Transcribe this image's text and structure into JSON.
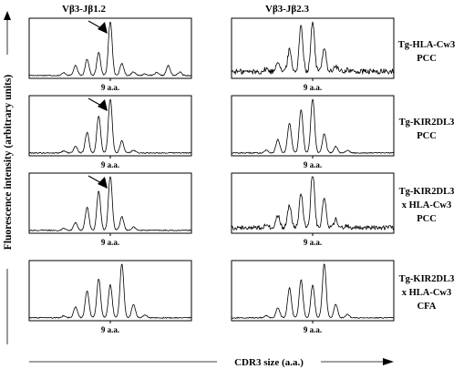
{
  "chart_data": {
    "type": "line",
    "columns": [
      "Vβ3-Jβ1.2",
      "Vβ3-Jβ2.3"
    ],
    "rows": [
      {
        "label_lines": [
          "Tg-HLA-Cw3",
          "PCC"
        ]
      },
      {
        "label_lines": [
          "Tg-KIR2DL3",
          "PCC"
        ]
      },
      {
        "label_lines": [
          "Tg-KIR2DL3",
          "x HLA-Cw3",
          "PCC"
        ]
      },
      {
        "label_lines": [
          "Tg-KIR2DL3",
          "x HLA-Cw3",
          "CFA"
        ]
      }
    ],
    "xlabel": "CDR3 size (a.a.)",
    "ylabel": "Fluorescence intensity (arbitrary units)",
    "tick_label": "9 a.a.",
    "reference_size": 9,
    "x_range": [
      2,
      16
    ],
    "y_range": [
      0,
      1
    ],
    "arrow_annotation": {
      "column": 0,
      "rows": [
        0,
        1,
        2
      ],
      "points_to_size": 9
    },
    "panels": [
      {
        "row": 0,
        "column": 0,
        "noise": 0.01,
        "baseline": 0.02,
        "peaks": [
          {
            "x": 5,
            "y": 0.05
          },
          {
            "x": 6,
            "y": 0.18
          },
          {
            "x": 7,
            "y": 0.3
          },
          {
            "x": 8,
            "y": 0.42
          },
          {
            "x": 9,
            "y": 1.0
          },
          {
            "x": 10,
            "y": 0.22
          },
          {
            "x": 11,
            "y": 0.07
          },
          {
            "x": 12,
            "y": 0.03
          },
          {
            "x": 13,
            "y": 0.05
          },
          {
            "x": 14,
            "y": 0.18
          },
          {
            "x": 15,
            "y": 0.06
          }
        ]
      },
      {
        "row": 0,
        "column": 1,
        "noise": 0.05,
        "baseline": 0.09,
        "peaks": [
          {
            "x": 5,
            "y": 0.05
          },
          {
            "x": 6,
            "y": 0.2
          },
          {
            "x": 7,
            "y": 0.4
          },
          {
            "x": 8,
            "y": 0.85
          },
          {
            "x": 9,
            "y": 0.92
          },
          {
            "x": 10,
            "y": 0.45
          },
          {
            "x": 11,
            "y": 0.1
          },
          {
            "x": 12,
            "y": 0.04
          }
        ]
      },
      {
        "row": 1,
        "column": 0,
        "noise": 0.01,
        "baseline": 0.02,
        "peaks": [
          {
            "x": 5,
            "y": 0.04
          },
          {
            "x": 6,
            "y": 0.12
          },
          {
            "x": 7,
            "y": 0.38
          },
          {
            "x": 8,
            "y": 0.68
          },
          {
            "x": 9,
            "y": 1.0
          },
          {
            "x": 10,
            "y": 0.22
          },
          {
            "x": 11,
            "y": 0.05
          }
        ]
      },
      {
        "row": 1,
        "column": 1,
        "noise": 0.01,
        "baseline": 0.02,
        "peaks": [
          {
            "x": 5,
            "y": 0.05
          },
          {
            "x": 6,
            "y": 0.25
          },
          {
            "x": 7,
            "y": 0.55
          },
          {
            "x": 8,
            "y": 0.8
          },
          {
            "x": 9,
            "y": 1.0
          },
          {
            "x": 10,
            "y": 0.35
          },
          {
            "x": 11,
            "y": 0.12
          },
          {
            "x": 12,
            "y": 0.05
          }
        ]
      },
      {
        "row": 2,
        "column": 0,
        "noise": 0.01,
        "baseline": 0.02,
        "peaks": [
          {
            "x": 5,
            "y": 0.04
          },
          {
            "x": 6,
            "y": 0.14
          },
          {
            "x": 7,
            "y": 0.42
          },
          {
            "x": 8,
            "y": 0.72
          },
          {
            "x": 9,
            "y": 1.0
          },
          {
            "x": 10,
            "y": 0.25
          },
          {
            "x": 11,
            "y": 0.06
          }
        ]
      },
      {
        "row": 2,
        "column": 1,
        "noise": 0.04,
        "baseline": 0.07,
        "peaks": [
          {
            "x": 5,
            "y": 0.05
          },
          {
            "x": 6,
            "y": 0.22
          },
          {
            "x": 7,
            "y": 0.4
          },
          {
            "x": 8,
            "y": 0.62
          },
          {
            "x": 9,
            "y": 1.0
          },
          {
            "x": 10,
            "y": 0.55
          },
          {
            "x": 11,
            "y": 0.15
          },
          {
            "x": 12,
            "y": 0.04
          }
        ]
      },
      {
        "row": 3,
        "column": 0,
        "noise": 0.01,
        "baseline": 0.02,
        "peaks": [
          {
            "x": 5,
            "y": 0.04
          },
          {
            "x": 6,
            "y": 0.2
          },
          {
            "x": 7,
            "y": 0.5
          },
          {
            "x": 8,
            "y": 0.72
          },
          {
            "x": 9,
            "y": 0.6
          },
          {
            "x": 10,
            "y": 1.0
          },
          {
            "x": 11,
            "y": 0.25
          },
          {
            "x": 12,
            "y": 0.05
          }
        ]
      },
      {
        "row": 3,
        "column": 1,
        "noise": 0.01,
        "baseline": 0.02,
        "peaks": [
          {
            "x": 5,
            "y": 0.04
          },
          {
            "x": 6,
            "y": 0.18
          },
          {
            "x": 7,
            "y": 0.55
          },
          {
            "x": 8,
            "y": 0.7
          },
          {
            "x": 9,
            "y": 0.6
          },
          {
            "x": 10,
            "y": 1.0
          },
          {
            "x": 11,
            "y": 0.25
          },
          {
            "x": 12,
            "y": 0.06
          }
        ]
      }
    ]
  }
}
